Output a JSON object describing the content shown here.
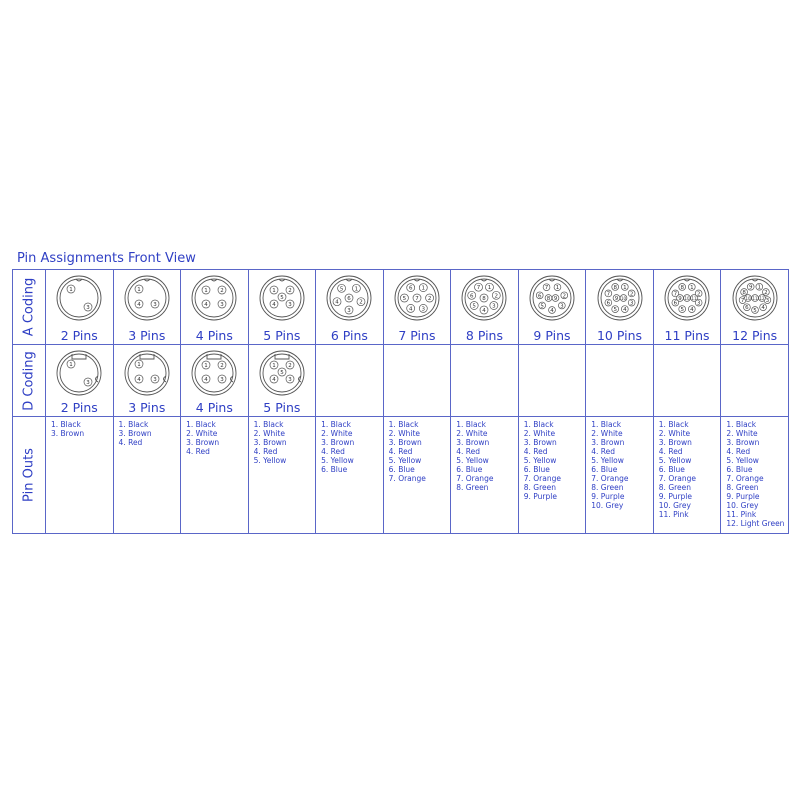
{
  "title": "Pin Assignments Front View",
  "rows": {
    "a_coding": "A Coding",
    "d_coding": "D Coding",
    "pin_outs": "Pin Outs"
  },
  "colors": {
    "text": "#2f3fc4",
    "grid": "#5a66c8",
    "drawing": "#555555"
  },
  "columns": [
    {
      "label": "2 Pins",
      "a_pins": [
        "1",
        "3"
      ],
      "d_label": "2 Pins",
      "d_pins": [
        "1",
        "3"
      ],
      "pinout": [
        "1. Black",
        "3. Brown"
      ]
    },
    {
      "label": "3 Pins",
      "a_pins": [
        "1",
        "4",
        "3"
      ],
      "d_label": "3 Pins",
      "d_pins": [
        "1",
        "4",
        "3"
      ],
      "pinout": [
        "1. Black",
        "3. Brown",
        "4. Red"
      ]
    },
    {
      "label": "4 Pins",
      "a_pins": [
        "1",
        "2",
        "3",
        "4"
      ],
      "d_label": "4 Pins",
      "d_pins": [
        "1",
        "2",
        "3",
        "4"
      ],
      "pinout": [
        "1. Black",
        "2. White",
        "3. Brown",
        "4. Red"
      ]
    },
    {
      "label": "5 Pins",
      "a_pins": [
        "1",
        "2",
        "3",
        "4",
        "5"
      ],
      "d_label": "5 Pins",
      "d_pins": [
        "1",
        "2",
        "3",
        "4",
        "5"
      ],
      "pinout": [
        "1. Black",
        "2. White",
        "3. Brown",
        "4. Red",
        "5. Yellow"
      ]
    },
    {
      "label": "6 Pins",
      "a_pins": [
        "1",
        "2",
        "3",
        "4",
        "5",
        "6"
      ],
      "pinout": [
        "1. Black",
        "2. White",
        "3. Brown",
        "4. Red",
        "5. Yellow",
        "6. Blue"
      ]
    },
    {
      "label": "7 Pins",
      "a_pins": [
        "1",
        "2",
        "3",
        "4",
        "5",
        "6",
        "7"
      ],
      "pinout": [
        "1. Black",
        "2. White",
        "3. Brown",
        "4. Red",
        "5. Yellow",
        "6. Blue",
        "7. Orange"
      ]
    },
    {
      "label": "8 Pins",
      "a_pins": [
        "1",
        "2",
        "3",
        "4",
        "5",
        "6",
        "7",
        "8"
      ],
      "pinout": [
        "1. Black",
        "2. White",
        "3. Brown",
        "4. Red",
        "5. Yellow",
        "6. Blue",
        "7. Orange",
        "8. Green"
      ]
    },
    {
      "label": "9 Pins",
      "a_pins": [
        "1",
        "2",
        "3",
        "4",
        "5",
        "6",
        "7",
        "8",
        "9"
      ],
      "pinout": [
        "1. Black",
        "2. White",
        "3. Brown",
        "4. Red",
        "5. Yellow",
        "6. Blue",
        "7. Orange",
        "8. Green",
        "9. Purple"
      ]
    },
    {
      "label": "10 Pins",
      "a_pins": [
        "1",
        "2",
        "3",
        "4",
        "5",
        "6",
        "7",
        "8",
        "9",
        "10"
      ],
      "pinout": [
        "1. Black",
        "2. White",
        "3. Brown",
        "4. Red",
        "5. Yellow",
        "6. Blue",
        "7. Orange",
        "8. Green",
        "9. Purple",
        "10. Grey"
      ]
    },
    {
      "label": "11 Pins",
      "a_pins": [
        "1",
        "2",
        "3",
        "4",
        "5",
        "6",
        "7",
        "8",
        "9",
        "10",
        "11"
      ],
      "pinout": [
        "1. Black",
        "2. White",
        "3. Brown",
        "4. Red",
        "5. Yellow",
        "6. Blue",
        "7. Orange",
        "8. Green",
        "9. Purple",
        "10. Grey",
        "11. Pink"
      ]
    },
    {
      "label": "12 Pins",
      "a_pins": [
        "1",
        "2",
        "3",
        "4",
        "5",
        "6",
        "7",
        "8",
        "9",
        "10",
        "11",
        "12"
      ],
      "pinout": [
        "1. Black",
        "2. White",
        "3. Brown",
        "4. Red",
        "5. Yellow",
        "6. Blue",
        "7. Orange",
        "8. Green",
        "9. Purple",
        "10. Grey",
        "11. Pink",
        "12. Light Green"
      ]
    }
  ]
}
